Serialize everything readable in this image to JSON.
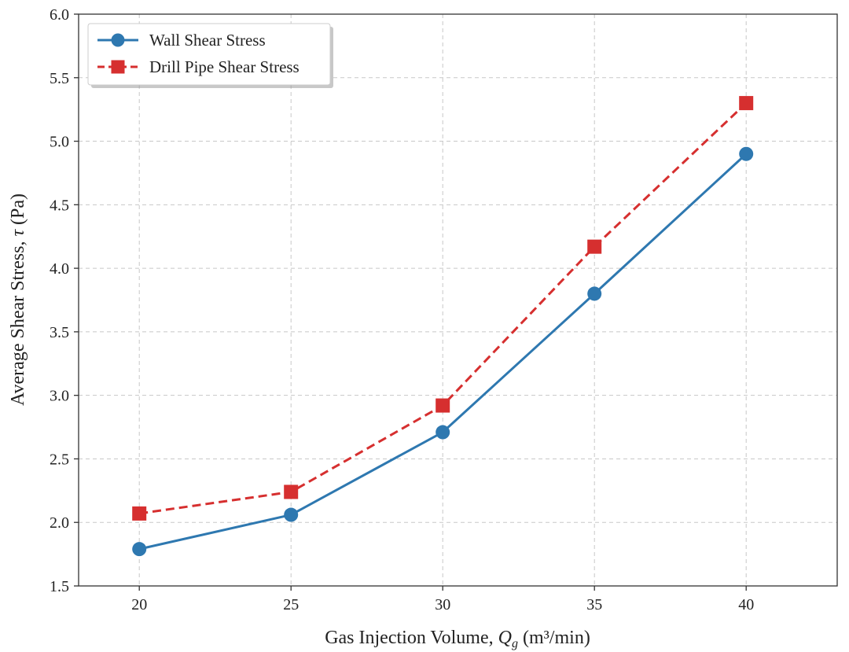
{
  "chart_data": {
    "type": "line",
    "title": "",
    "xlabel_prefix": "Gas Injection Volume, ",
    "xlabel_symbol": "Q",
    "xlabel_subscript": "g",
    "xlabel_suffix": " (m³/min)",
    "ylabel_prefix": "Average Shear Stress, ",
    "ylabel_symbol": "τ",
    "ylabel_suffix": " (Pa)",
    "x": [
      20,
      25,
      30,
      35,
      40
    ],
    "xlim": [
      18,
      43
    ],
    "ylim": [
      1.5,
      6.0
    ],
    "xticks": [
      "20",
      "25",
      "30",
      "35",
      "40"
    ],
    "yticks": [
      "1.5",
      "2.0",
      "2.5",
      "3.0",
      "3.5",
      "4.0",
      "4.5",
      "5.0",
      "5.5",
      "6.0"
    ],
    "grid": true,
    "legend_position": "top-left",
    "series": [
      {
        "name": "Wall Shear Stress",
        "values": [
          1.79,
          2.06,
          2.71,
          3.8,
          4.9
        ],
        "color": "#2e78b0",
        "marker": "circle",
        "line_style": "solid"
      },
      {
        "name": "Drill Pipe Shear Stress",
        "values": [
          2.07,
          2.24,
          2.92,
          4.17,
          5.3
        ],
        "color": "#d62f2f",
        "marker": "square",
        "line_style": "dashed"
      }
    ]
  }
}
